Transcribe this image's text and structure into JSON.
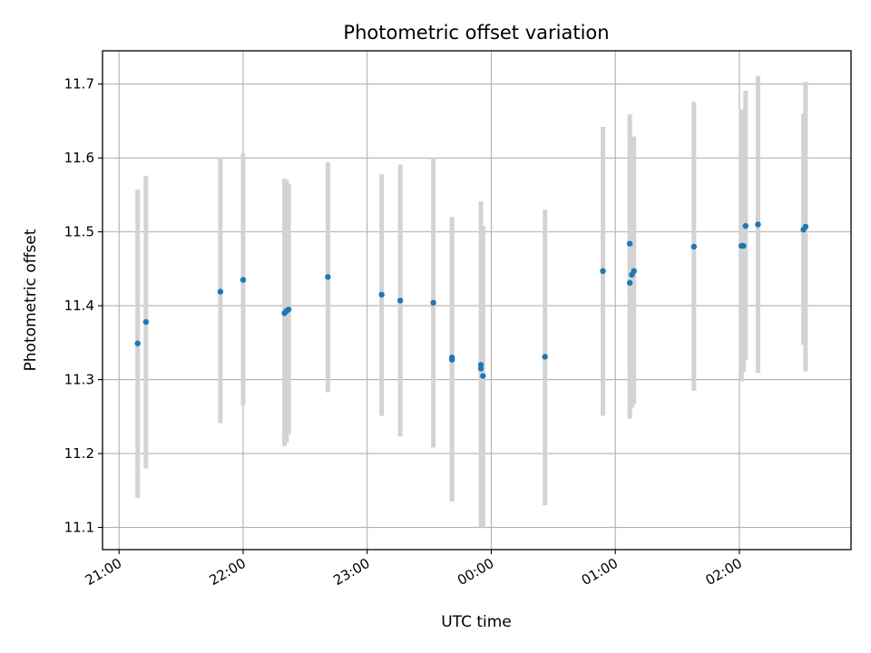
{
  "chart_data": {
    "type": "scatter",
    "title": "Photometric offset variation",
    "xlabel": "UTC time",
    "ylabel": "Photometric offset",
    "x_unit": "UTC time of day",
    "xlim": [
      "20:52",
      "02:54"
    ],
    "ylim": [
      11.07,
      11.745
    ],
    "x_ticks": [
      "21:00",
      "22:00",
      "23:00",
      "00:00",
      "01:00",
      "02:00"
    ],
    "y_ticks": [
      11.1,
      11.2,
      11.3,
      11.4,
      11.5,
      11.6,
      11.7
    ],
    "grid": true,
    "marker_color": "#1f77b4",
    "errorbar_color": "#d3d3d3",
    "points": [
      {
        "t": "21:09",
        "y": 11.349,
        "lo": 11.14,
        "hi": 11.557
      },
      {
        "t": "21:13",
        "y": 11.378,
        "lo": 11.18,
        "hi": 11.576
      },
      {
        "t": "21:49",
        "y": 11.419,
        "lo": 11.241,
        "hi": 11.6
      },
      {
        "t": "22:00",
        "y": 11.435,
        "lo": 11.265,
        "hi": 11.606
      },
      {
        "t": "22:20",
        "y": 11.39,
        "lo": 11.21,
        "hi": 11.572
      },
      {
        "t": "22:21",
        "y": 11.393,
        "lo": 11.215,
        "hi": 11.57
      },
      {
        "t": "22:22",
        "y": 11.395,
        "lo": 11.226,
        "hi": 11.565
      },
      {
        "t": "22:41",
        "y": 11.439,
        "lo": 11.283,
        "hi": 11.594
      },
      {
        "t": "23:07",
        "y": 11.415,
        "lo": 11.251,
        "hi": 11.578
      },
      {
        "t": "23:16",
        "y": 11.407,
        "lo": 11.223,
        "hi": 11.591
      },
      {
        "t": "23:32",
        "y": 11.404,
        "lo": 11.208,
        "hi": 11.6
      },
      {
        "t": "23:41",
        "y": 11.33,
        "lo": 11.135,
        "hi": 11.52
      },
      {
        "t": "23:41",
        "y": 11.327,
        "lo": 11.135,
        "hi": 11.52
      },
      {
        "t": "23:55",
        "y": 11.32,
        "lo": 11.1,
        "hi": 11.541
      },
      {
        "t": "23:55",
        "y": 11.315,
        "lo": 11.1,
        "hi": 11.541
      },
      {
        "t": "23:56",
        "y": 11.305,
        "lo": 11.1,
        "hi": 11.508
      },
      {
        "t": "00:26",
        "y": 11.331,
        "lo": 11.13,
        "hi": 11.53
      },
      {
        "t": "00:54",
        "y": 11.447,
        "lo": 11.251,
        "hi": 11.642
      },
      {
        "t": "01:07",
        "y": 11.484,
        "lo": 11.31,
        "hi": 11.659
      },
      {
        "t": "01:07",
        "y": 11.431,
        "lo": 11.247,
        "hi": 11.61
      },
      {
        "t": "01:08",
        "y": 11.442,
        "lo": 11.262,
        "hi": 11.62
      },
      {
        "t": "01:09",
        "y": 11.447,
        "lo": 11.267,
        "hi": 11.629
      },
      {
        "t": "01:38",
        "y": 11.48,
        "lo": 11.285,
        "hi": 11.676
      },
      {
        "t": "02:01",
        "y": 11.481,
        "lo": 11.298,
        "hi": 11.666
      },
      {
        "t": "02:02",
        "y": 11.481,
        "lo": 11.31,
        "hi": 11.665
      },
      {
        "t": "02:03",
        "y": 11.508,
        "lo": 11.326,
        "hi": 11.691
      },
      {
        "t": "02:09",
        "y": 11.51,
        "lo": 11.309,
        "hi": 11.711
      },
      {
        "t": "02:31",
        "y": 11.503,
        "lo": 11.347,
        "hi": 11.66
      },
      {
        "t": "02:32",
        "y": 11.507,
        "lo": 11.311,
        "hi": 11.703
      }
    ]
  }
}
